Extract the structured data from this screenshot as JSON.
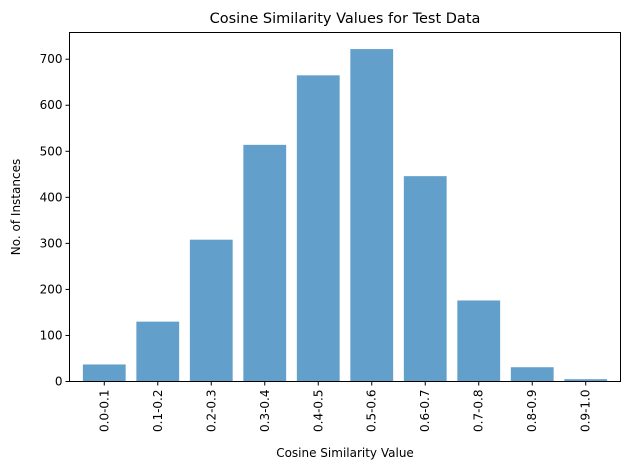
{
  "chart_data": {
    "type": "bar",
    "title": "Cosine Similarity Values for Test Data",
    "xlabel": "Cosine Similarity Value",
    "ylabel": "No. of Instances",
    "categories": [
      "0.0-0.1",
      "0.1-0.2",
      "0.2-0.3",
      "0.3-0.4",
      "0.4-0.5",
      "0.5-0.6",
      "0.6-0.7",
      "0.7-0.8",
      "0.8-0.9",
      "0.9-1.0"
    ],
    "values": [
      37,
      130,
      308,
      514,
      665,
      722,
      446,
      176,
      31,
      5
    ],
    "ylim": [
      0,
      758
    ],
    "yticks": [
      0,
      100,
      200,
      300,
      400,
      500,
      600,
      700
    ],
    "bar_color": "#62a0cb",
    "grid": false,
    "legend": "none"
  }
}
